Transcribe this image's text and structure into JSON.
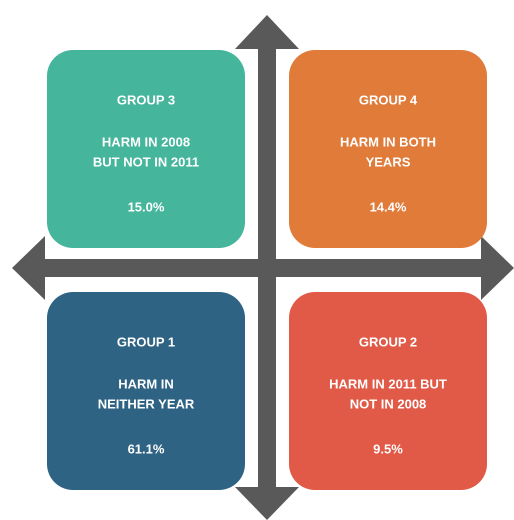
{
  "groups": [
    {
      "name": "GROUP 3",
      "description": [
        "HARM IN 2008",
        "BUT NOT IN 2011"
      ],
      "share": "15.0%",
      "color": "#45b59c"
    },
    {
      "name": "GROUP 4",
      "description": [
        "HARM IN BOTH",
        "YEARS"
      ],
      "share": "14.4%",
      "color": "#e07b3a"
    },
    {
      "name": "GROUP 1",
      "description": [
        "HARM IN",
        "NEITHER YEAR"
      ],
      "share": "61.1%",
      "color": "#2f6383"
    },
    {
      "name": "GROUP 2",
      "description": [
        "HARM IN 2011 BUT",
        "NOT IN 2008"
      ],
      "share": "9.5%",
      "color": "#e05a47"
    }
  ]
}
